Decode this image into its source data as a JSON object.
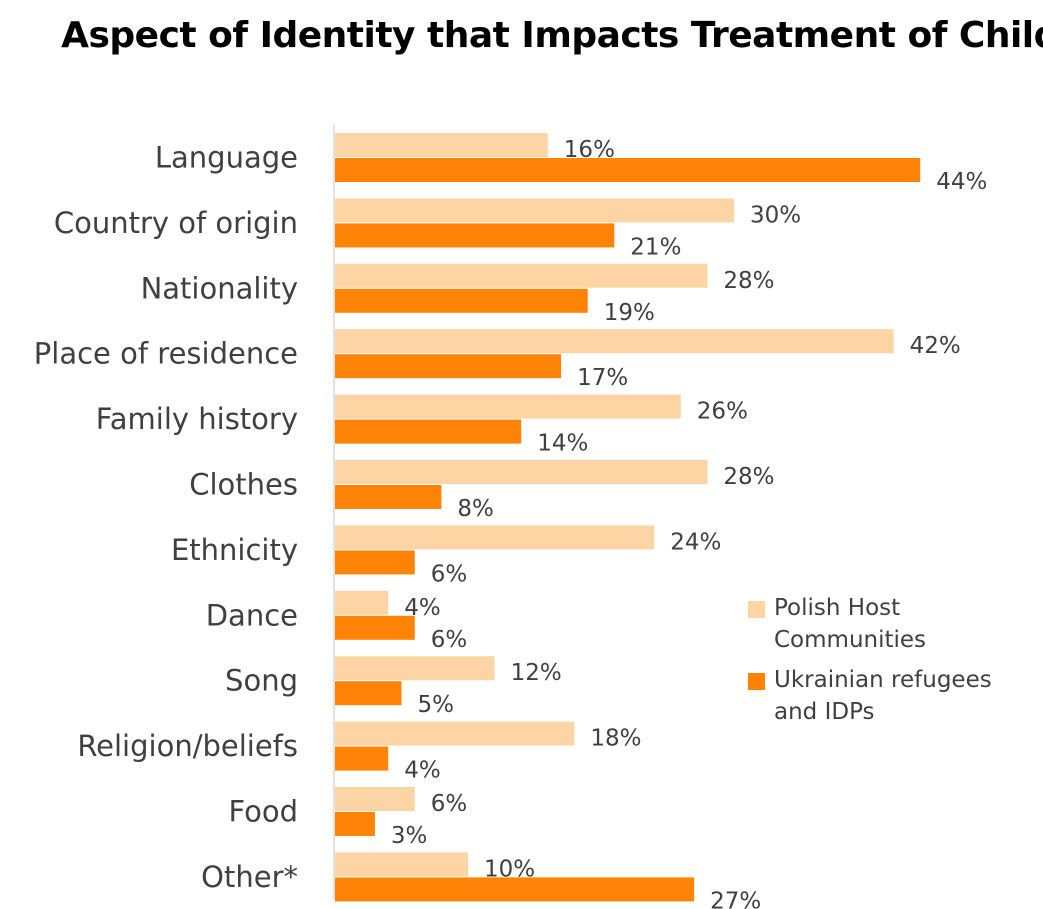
{
  "title": "Aspect of Identity that Impacts Treatment of Child",
  "colors": {
    "polish": "#FDD5A4",
    "ukrainian": "#FF8307",
    "axis": "#D9D9D9",
    "text": "#404040"
  },
  "legend": [
    {
      "label": "Polish Host Communities",
      "color": "#FDD5A4"
    },
    {
      "label": "Ukrainian refugees and IDPs",
      "color": "#FF8307"
    }
  ],
  "chart_data": {
    "type": "bar",
    "orientation": "horizontal",
    "title": "Aspect of Identity that Impacts Treatment of Child",
    "categories": [
      "Language",
      "Country of origin",
      "Nationality",
      "Place of residence",
      "Family history",
      "Clothes",
      "Ethnicity",
      "Dance",
      "Song",
      "Religion/beliefs",
      "Food",
      "Other*"
    ],
    "series": [
      {
        "name": "Polish Host Communities",
        "color": "#FDD5A4",
        "values": [
          16,
          30,
          28,
          42,
          26,
          28,
          24,
          4,
          12,
          18,
          6,
          10
        ],
        "labels": [
          "16%",
          "30%",
          "28%",
          "42%",
          "26%",
          "28%",
          "24%",
          "4%",
          "12%",
          "18%",
          "6%",
          "10%"
        ]
      },
      {
        "name": "Ukrainian refugees and IDPs",
        "color": "#FF8307",
        "values": [
          44,
          21,
          19,
          17,
          14,
          8,
          6,
          6,
          5,
          4,
          3,
          27
        ],
        "labels": [
          "44%",
          "21%",
          "19%",
          "17%",
          "14%",
          "8%",
          "6%",
          "6%",
          "5%",
          "4%",
          "3%",
          "27%"
        ]
      }
    ],
    "grid": false,
    "legend_position": "right"
  }
}
